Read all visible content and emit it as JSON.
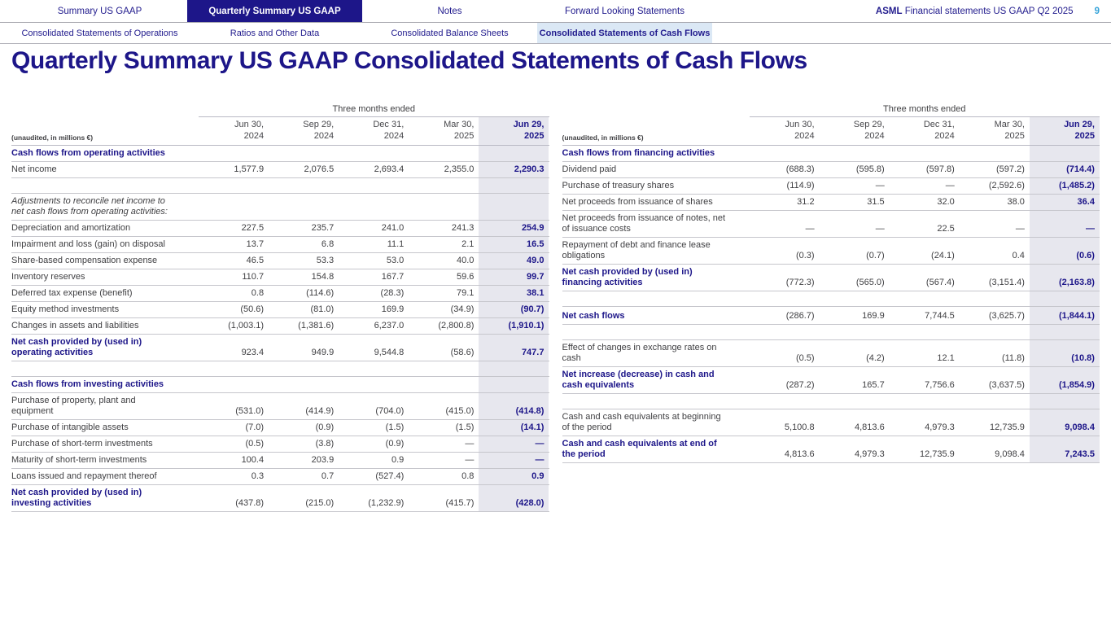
{
  "header": {
    "tabs": [
      {
        "label": "Summary US GAAP",
        "active": false
      },
      {
        "label": "Quarterly Summary US GAAP",
        "active": true
      },
      {
        "label": "Notes",
        "active": false
      },
      {
        "label": "Forward Looking Statements",
        "active": false
      }
    ],
    "brand_bold": "ASML",
    "brand_rest": "Financial statements US GAAP Q2 2025",
    "page_number": "9",
    "subtabs": [
      {
        "label": "Consolidated Statements of Operations",
        "active": false
      },
      {
        "label": "Ratios and Other Data",
        "active": false
      },
      {
        "label": "Consolidated Balance Sheets",
        "active": false
      },
      {
        "label": "Consolidated Statements of Cash Flows",
        "active": true
      }
    ]
  },
  "page_title": "Quarterly Summary US GAAP Consolidated Statements of Cash Flows",
  "colors": {
    "navy": "#1d1689",
    "page_number_blue": "#35a3d9",
    "active_subtab_bg": "#dbe8f5",
    "highlight_column_bg": "#e7e7ee"
  },
  "tables": [
    {
      "period_header": "Three months ended",
      "unaudited_note": "(unaudited, in millions €)",
      "columns": [
        {
          "line1": "Jun 30,",
          "line2": "2024",
          "highlight": false
        },
        {
          "line1": "Sep 29,",
          "line2": "2024",
          "highlight": false
        },
        {
          "line1": "Dec 31,",
          "line2": "2024",
          "highlight": false
        },
        {
          "line1": "Mar 30,",
          "line2": "2025",
          "highlight": false
        },
        {
          "line1": "Jun 29,",
          "line2": "2025",
          "highlight": true
        }
      ],
      "rows": [
        {
          "type": "section",
          "label": "Cash flows from operating activities",
          "values": [
            "",
            "",
            "",
            "",
            ""
          ]
        },
        {
          "type": "normal",
          "label": "Net income",
          "values": [
            "1,577.9",
            "2,076.5",
            "2,693.4",
            "2,355.0",
            "2,290.3"
          ]
        },
        {
          "type": "spacer",
          "label": "",
          "values": [
            "",
            "",
            "",
            "",
            ""
          ]
        },
        {
          "type": "italic",
          "label": "Adjustments to reconcile net income to\nnet cash flows from operating activities:",
          "values": [
            "",
            "",
            "",
            "",
            ""
          ]
        },
        {
          "type": "normal",
          "label": "Depreciation and amortization",
          "values": [
            "227.5",
            "235.7",
            "241.0",
            "241.3",
            "254.9"
          ]
        },
        {
          "type": "normal",
          "label": "Impairment and loss (gain) on disposal",
          "values": [
            "13.7",
            "6.8",
            "11.1",
            "2.1",
            "16.5"
          ]
        },
        {
          "type": "normal",
          "label": "Share-based compensation expense",
          "values": [
            "46.5",
            "53.3",
            "53.0",
            "40.0",
            "49.0"
          ]
        },
        {
          "type": "normal",
          "label": "Inventory reserves",
          "values": [
            "110.7",
            "154.8",
            "167.7",
            "59.6",
            "99.7"
          ]
        },
        {
          "type": "normal",
          "label": "Deferred tax expense (benefit)",
          "values": [
            "0.8",
            "(114.6)",
            "(28.3)",
            "79.1",
            "38.1"
          ]
        },
        {
          "type": "normal",
          "label": "Equity method investments",
          "values": [
            "(50.6)",
            "(81.0)",
            "169.9",
            "(34.9)",
            "(90.7)"
          ]
        },
        {
          "type": "normal",
          "label": "Changes in assets and liabilities",
          "values": [
            "(1,003.1)",
            "(1,381.6)",
            "6,237.0",
            "(2,800.8)",
            "(1,910.1)"
          ]
        },
        {
          "type": "total",
          "label": "Net cash provided by (used in)\noperating activities",
          "values": [
            "923.4",
            "949.9",
            "9,544.8",
            "(58.6)",
            "747.7"
          ]
        },
        {
          "type": "spacer",
          "label": "",
          "values": [
            "",
            "",
            "",
            "",
            ""
          ]
        },
        {
          "type": "section",
          "label": "Cash flows from investing activities",
          "values": [
            "",
            "",
            "",
            "",
            ""
          ]
        },
        {
          "type": "normal",
          "label": "Purchase of property, plant and\nequipment",
          "values": [
            "(531.0)",
            "(414.9)",
            "(704.0)",
            "(415.0)",
            "(414.8)"
          ]
        },
        {
          "type": "normal",
          "label": "Purchase of intangible assets",
          "values": [
            "(7.0)",
            "(0.9)",
            "(1.5)",
            "(1.5)",
            "(14.1)"
          ]
        },
        {
          "type": "normal",
          "label": "Purchase of short-term investments",
          "values": [
            "(0.5)",
            "(3.8)",
            "(0.9)",
            "—",
            "—"
          ]
        },
        {
          "type": "normal",
          "label": "Maturity of short-term investments",
          "values": [
            "100.4",
            "203.9",
            "0.9",
            "—",
            "—"
          ]
        },
        {
          "type": "normal",
          "label": "Loans issued and repayment thereof",
          "values": [
            "0.3",
            "0.7",
            "(527.4)",
            "0.8",
            "0.9"
          ]
        },
        {
          "type": "total",
          "label": "Net cash provided by (used in)\ninvesting activities",
          "values": [
            "(437.8)",
            "(215.0)",
            "(1,232.9)",
            "(415.7)",
            "(428.0)"
          ]
        }
      ]
    },
    {
      "period_header": "Three months ended",
      "unaudited_note": "(unaudited, in millions €)",
      "columns": [
        {
          "line1": "Jun 30,",
          "line2": "2024",
          "highlight": false
        },
        {
          "line1": "Sep 29,",
          "line2": "2024",
          "highlight": false
        },
        {
          "line1": "Dec 31,",
          "line2": "2024",
          "highlight": false
        },
        {
          "line1": "Mar 30,",
          "line2": "2025",
          "highlight": false
        },
        {
          "line1": "Jun 29,",
          "line2": "2025",
          "highlight": true
        }
      ],
      "rows": [
        {
          "type": "section",
          "label": "Cash flows from financing activities",
          "values": [
            "",
            "",
            "",
            "",
            ""
          ]
        },
        {
          "type": "normal",
          "label": "Dividend paid",
          "values": [
            "(688.3)",
            "(595.8)",
            "(597.8)",
            "(597.2)",
            "(714.4)"
          ]
        },
        {
          "type": "normal",
          "label": "Purchase of treasury shares",
          "values": [
            "(114.9)",
            "—",
            "—",
            "(2,592.6)",
            "(1,485.2)"
          ]
        },
        {
          "type": "normal",
          "label": "Net proceeds from issuance of shares",
          "values": [
            "31.2",
            "31.5",
            "32.0",
            "38.0",
            "36.4"
          ]
        },
        {
          "type": "normal",
          "label": "Net proceeds from issuance of notes, net\nof issuance costs",
          "values": [
            "—",
            "—",
            "22.5",
            "—",
            "—"
          ]
        },
        {
          "type": "normal",
          "label": "Repayment of debt and finance lease\nobligations",
          "values": [
            "(0.3)",
            "(0.7)",
            "(24.1)",
            "0.4",
            "(0.6)"
          ]
        },
        {
          "type": "total",
          "label": "Net cash provided by (used in)\nfinancing activities",
          "values": [
            "(772.3)",
            "(565.0)",
            "(567.4)",
            "(3,151.4)",
            "(2,163.8)"
          ]
        },
        {
          "type": "spacer",
          "label": "",
          "values": [
            "",
            "",
            "",
            "",
            ""
          ]
        },
        {
          "type": "total",
          "label": "Net cash flows",
          "values": [
            "(286.7)",
            "169.9",
            "7,744.5",
            "(3,625.7)",
            "(1,844.1)"
          ]
        },
        {
          "type": "spacer",
          "label": "",
          "values": [
            "",
            "",
            "",
            "",
            ""
          ]
        },
        {
          "type": "normal",
          "label": "Effect of changes in exchange rates on\ncash",
          "values": [
            "(0.5)",
            "(4.2)",
            "12.1",
            "(11.8)",
            "(10.8)"
          ]
        },
        {
          "type": "total",
          "label": "Net increase (decrease) in cash and\ncash equivalents",
          "values": [
            "(287.2)",
            "165.7",
            "7,756.6",
            "(3,637.5)",
            "(1,854.9)"
          ]
        },
        {
          "type": "spacer",
          "label": "",
          "values": [
            "",
            "",
            "",
            "",
            ""
          ]
        },
        {
          "type": "normal",
          "label": "Cash and cash equivalents at beginning\nof the period",
          "values": [
            "5,100.8",
            "4,813.6",
            "4,979.3",
            "12,735.9",
            "9,098.4"
          ]
        },
        {
          "type": "total",
          "label": "Cash and cash equivalents at end of\nthe period",
          "values": [
            "4,813.6",
            "4,979.3",
            "12,735.9",
            "9,098.4",
            "7,243.5"
          ]
        }
      ]
    }
  ]
}
